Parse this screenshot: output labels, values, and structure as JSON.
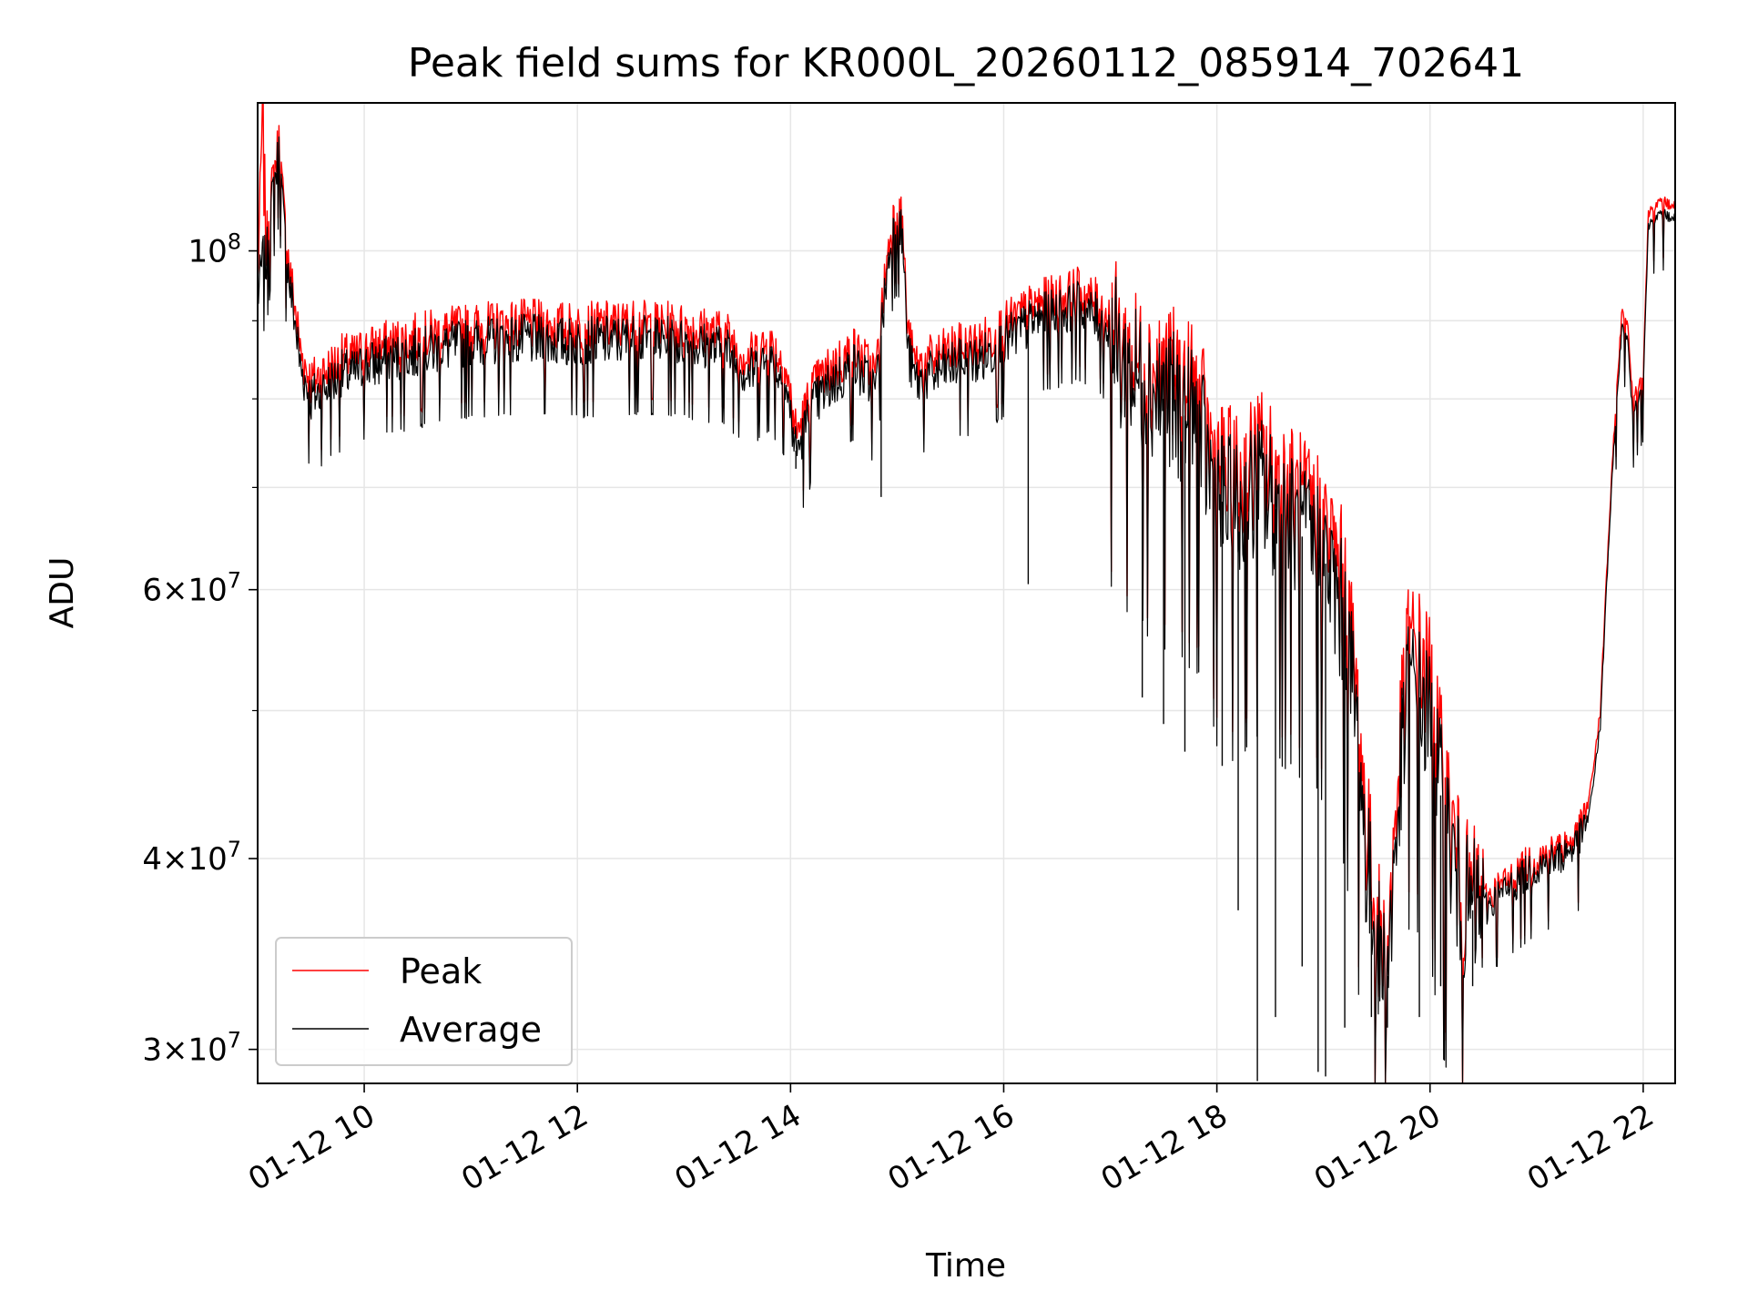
{
  "chart_data": {
    "type": "line",
    "title": "Peak field sums for KR000L_20260112_085914_702641",
    "xlabel": "Time",
    "ylabel": "ADU",
    "yscale": "log",
    "grid": true,
    "legend_position": "lower-left",
    "xlim": [
      9.0,
      22.3
    ],
    "ylim": [
      28500000,
      125000000
    ],
    "x_ticks": [
      {
        "value": 10,
        "label": "01-12 10"
      },
      {
        "value": 12,
        "label": "01-12 12"
      },
      {
        "value": 14,
        "label": "01-12 14"
      },
      {
        "value": 16,
        "label": "01-12 16"
      },
      {
        "value": 18,
        "label": "01-12 18"
      },
      {
        "value": 20,
        "label": "01-12 20"
      },
      {
        "value": 22,
        "label": "01-12 22"
      }
    ],
    "y_major_ticks": [
      {
        "value": 30000000,
        "base": "3×10",
        "exp": "7"
      },
      {
        "value": 40000000,
        "base": "4×10",
        "exp": "7"
      },
      {
        "value": 60000000,
        "base": "6×10",
        "exp": "7"
      },
      {
        "value": 100000000,
        "base": "10",
        "exp": "8"
      }
    ],
    "y_minor_ticks": [
      50000000,
      70000000,
      80000000,
      90000000
    ],
    "x_unit": "hour of 2026-01-12",
    "series": [
      {
        "name": "Peak",
        "color": "#ff0000",
        "x": [
          9.0,
          9.05,
          9.08,
          9.1,
          9.15,
          9.2,
          9.25,
          9.3,
          9.35,
          9.4,
          9.45,
          9.5,
          9.6,
          9.7,
          9.8,
          9.9,
          10.0,
          10.3,
          10.6,
          11.0,
          11.5,
          12.0,
          12.5,
          13.0,
          13.4,
          13.6,
          13.8,
          13.95,
          14.0,
          14.05,
          14.1,
          14.2,
          14.4,
          14.6,
          14.8,
          14.85,
          14.9,
          14.95,
          15.0,
          15.05,
          15.1,
          15.15,
          15.2,
          15.5,
          15.8,
          16.0,
          16.2,
          16.3,
          16.5,
          16.7,
          16.9,
          17.0,
          17.1,
          17.3,
          17.5,
          17.8,
          18.0,
          18.2,
          18.4,
          18.6,
          18.8,
          19.0,
          19.2,
          19.3,
          19.4,
          19.5,
          19.6,
          19.7,
          19.8,
          19.9,
          20.0,
          20.1,
          20.3,
          20.5,
          20.8,
          21.0,
          21.2,
          21.4,
          21.5,
          21.6,
          21.7,
          21.8,
          21.85,
          21.9,
          21.95,
          22.0,
          22.05,
          22.1,
          22.2,
          22.3
        ],
        "y": [
          95000000,
          125000000,
          100000000,
          105000000,
          112000000,
          118000000,
          105000000,
          97000000,
          92000000,
          86000000,
          84000000,
          82000000,
          83000000,
          84000000,
          85000000,
          85000000,
          86000000,
          87000000,
          88000000,
          89000000,
          89500000,
          89000000,
          89500000,
          89000000,
          88000000,
          85000000,
          87000000,
          84000000,
          80000000,
          76000000,
          77000000,
          81000000,
          84000000,
          86000000,
          83000000,
          90000000,
          98000000,
          104000000,
          107000000,
          104000000,
          88000000,
          85000000,
          84000000,
          86000000,
          87000000,
          89000000,
          91000000,
          92000000,
          93000000,
          94000000,
          92000000,
          90000000,
          86000000,
          84000000,
          83000000,
          80000000,
          72000000,
          70000000,
          73000000,
          70000000,
          68000000,
          66000000,
          60000000,
          52000000,
          42000000,
          36000000,
          34000000,
          45000000,
          55000000,
          54000000,
          52000000,
          46000000,
          38000000,
          37500000,
          39000000,
          40000000,
          40500000,
          41500000,
          44000000,
          50000000,
          70000000,
          91000000,
          90000000,
          80000000,
          81500000,
          83000000,
          106000000,
          107000000,
          107500000,
          107000000
        ]
      },
      {
        "name": "Average",
        "color": "#000000",
        "x": [
          9.0,
          9.05,
          9.08,
          9.1,
          9.15,
          9.2,
          9.25,
          9.3,
          9.35,
          9.4,
          9.45,
          9.5,
          9.6,
          9.7,
          9.8,
          9.9,
          10.0,
          10.3,
          10.6,
          11.0,
          11.5,
          12.0,
          12.5,
          13.0,
          13.4,
          13.6,
          13.8,
          13.95,
          14.0,
          14.05,
          14.1,
          14.2,
          14.4,
          14.6,
          14.8,
          14.85,
          14.9,
          14.95,
          15.0,
          15.05,
          15.1,
          15.15,
          15.2,
          15.5,
          15.8,
          16.0,
          16.2,
          16.3,
          16.5,
          16.7,
          16.9,
          17.0,
          17.1,
          17.3,
          17.5,
          17.8,
          18.0,
          18.2,
          18.4,
          18.6,
          18.8,
          19.0,
          19.2,
          19.3,
          19.4,
          19.5,
          19.6,
          19.7,
          19.8,
          19.9,
          20.0,
          20.1,
          20.3,
          20.5,
          20.8,
          21.0,
          21.2,
          21.4,
          21.5,
          21.6,
          21.7,
          21.8,
          21.85,
          21.9,
          21.95,
          22.0,
          22.05,
          22.1,
          22.2,
          22.3
        ],
        "y": [
          93000000,
          99000000,
          98000000,
          102000000,
          110000000,
          116000000,
          103000000,
          95000000,
          90000000,
          84000000,
          82000000,
          80000000,
          81000000,
          82000000,
          83000000,
          83000000,
          84000000,
          85000000,
          86000000,
          87000000,
          87500000,
          87000000,
          87500000,
          87000000,
          86000000,
          83000000,
          85000000,
          82000000,
          78000000,
          74000000,
          75000000,
          79000000,
          82000000,
          84000000,
          81000000,
          88000000,
          96000000,
          102000000,
          105000000,
          102000000,
          86000000,
          83000000,
          82000000,
          84000000,
          85000000,
          87000000,
          89000000,
          90000000,
          91000000,
          92000000,
          90000000,
          88000000,
          84000000,
          82000000,
          80000000,
          77000000,
          69000000,
          67000000,
          70000000,
          67000000,
          65000000,
          63000000,
          57000000,
          50000000,
          40000000,
          35000000,
          33500000,
          43000000,
          52000000,
          51000000,
          49000000,
          44000000,
          37000000,
          37000000,
          38500000,
          39500000,
          40000000,
          41000000,
          43000000,
          49000000,
          69000000,
          89000000,
          88000000,
          78000000,
          80000000,
          81500000,
          104000000,
          105000000,
          105500000,
          105000000
        ]
      }
    ],
    "dips": [
      {
        "x": 16.23,
        "y": 60500000
      },
      {
        "x": 17.3,
        "y": 51000000
      },
      {
        "x": 17.5,
        "y": 49000000
      },
      {
        "x": 17.7,
        "y": 47000000
      },
      {
        "x": 18.05,
        "y": 46000000
      },
      {
        "x": 18.2,
        "y": 37000000
      },
      {
        "x": 18.38,
        "y": 28600000
      },
      {
        "x": 18.55,
        "y": 31500000
      },
      {
        "x": 18.8,
        "y": 34000000
      },
      {
        "x": 18.95,
        "y": 29000000
      },
      {
        "x": 19.02,
        "y": 28800000
      },
      {
        "x": 19.2,
        "y": 31000000
      },
      {
        "x": 19.45,
        "y": 31500000
      },
      {
        "x": 19.6,
        "y": 31000000
      },
      {
        "x": 19.9,
        "y": 31500000
      },
      {
        "x": 20.1,
        "y": 33000000
      },
      {
        "x": 20.4,
        "y": 33000000
      },
      {
        "x": 14.85,
        "y": 69000000
      },
      {
        "x": 14.05,
        "y": 72000000
      }
    ]
  }
}
